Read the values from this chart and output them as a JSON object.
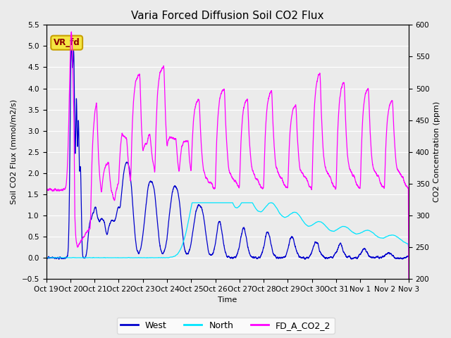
{
  "title": "Varia Forced Diffusion Soil CO2 Flux",
  "xlabel": "Time",
  "ylabel_left": "Soil CO2 Flux (mmol/m2/s)",
  "ylabel_right": "CO2 Concentration (ppm)",
  "ylim_left": [
    -0.5,
    5.5
  ],
  "ylim_right": [
    200,
    600
  ],
  "legend_labels": [
    "West",
    "North",
    "FD_A_CO2_2"
  ],
  "legend_colors": [
    "#0000cd",
    "#00e5ff",
    "#ff00ff"
  ],
  "annotation_text": "VR_fd",
  "bg_color": "#ebebeb",
  "west_color": "#0000cd",
  "north_color": "#00e5ff",
  "co2_color": "#ff00ff",
  "x_tick_labels": [
    "Oct 19",
    "Oct 20",
    "Oct 21",
    "Oct 22",
    "Oct 23",
    "Oct 24",
    "Oct 25",
    "Oct 26",
    "Oct 27",
    "Oct 28",
    "Oct 29",
    "Oct 30",
    "Oct 31",
    "Nov 1",
    "Nov 2",
    "Nov 3"
  ],
  "title_fontsize": 11,
  "label_fontsize": 8,
  "tick_fontsize": 7.5
}
